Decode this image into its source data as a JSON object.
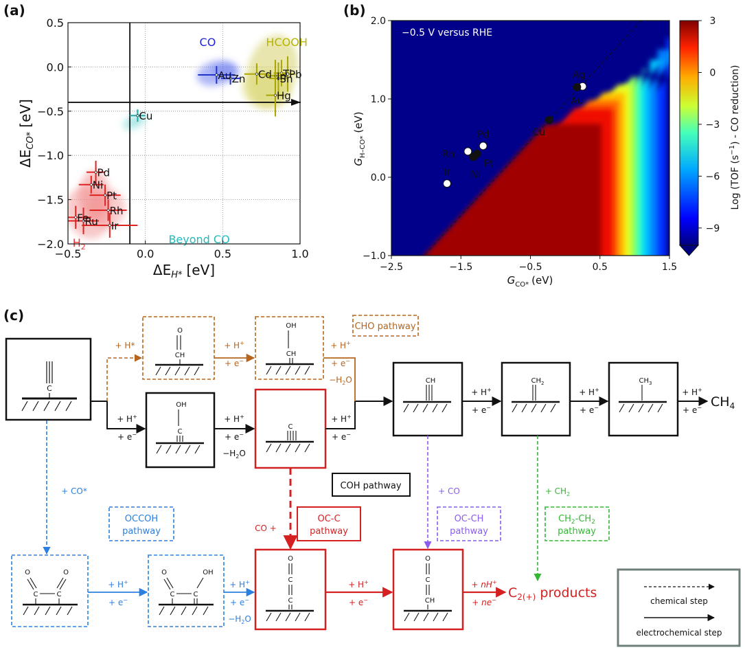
{
  "panels": {
    "a": {
      "label": "(a)"
    },
    "b": {
      "label": "(b)"
    },
    "c": {
      "label": "(c)"
    }
  },
  "chart_data": [
    {
      "type": "scatter",
      "panel": "a",
      "xlabel": "ΔE",
      "xlabel_sub": "H*",
      "xlabel_unit": "[eV]",
      "ylabel": "ΔE",
      "ylabel_sub": "CO*",
      "ylabel_unit": "[eV]",
      "xlim": [
        -0.5,
        1.0
      ],
      "ylim": [
        -2.0,
        0.5
      ],
      "xticks": [
        "−0.5",
        "0.0",
        "0.5",
        "1.0"
      ],
      "yticks": [
        "0.5",
        "0.0",
        "−0.5",
        "−1.0",
        "−1.5",
        "−2.0"
      ],
      "xtick_values": [
        -0.5,
        0.0,
        0.5,
        1.0
      ],
      "ytick_values": [
        0.5,
        0.0,
        -0.5,
        -1.0,
        -1.5,
        -2.0
      ],
      "grid": true,
      "threshold_x": -0.1,
      "threshold_y": -0.4,
      "region_labels": [
        {
          "text": "CO",
          "color": "#2222dd",
          "x": 0.35,
          "y": 0.3
        },
        {
          "text": "HCOOH",
          "color": "#b8b400",
          "x": 0.78,
          "y": 0.3
        },
        {
          "text": "H",
          "sub": "2",
          "color": "#ee3333",
          "x": -0.47,
          "y": -1.97
        },
        {
          "text": "Beyond CO",
          "color": "#22bbbb",
          "x": 0.15,
          "y": -1.93
        }
      ],
      "blobs": [
        {
          "group": "CO",
          "color": "#5566ee",
          "cx": 0.46,
          "cy": -0.07,
          "rx": 0.13,
          "ry": 0.14,
          "rot": -15
        },
        {
          "group": "CO",
          "color": "#6677ee",
          "cx": 0.52,
          "cy": -0.05,
          "rx": 0.09,
          "ry": 0.09,
          "rot": 0
        },
        {
          "group": "HCOOH",
          "color": "#cdc84a",
          "cx": 0.82,
          "cy": -0.05,
          "rx": 0.16,
          "ry": 0.42,
          "rot": 15
        },
        {
          "group": "HCOOH",
          "color": "#d6d260",
          "cx": 0.78,
          "cy": -0.25,
          "rx": 0.16,
          "ry": 0.22,
          "rot": 10
        },
        {
          "group": "Beyond CO",
          "color": "#55cccc",
          "cx": -0.07,
          "cy": -0.62,
          "rx": 0.08,
          "ry": 0.07,
          "rot": -25
        },
        {
          "group": "H2",
          "color": "#f07a7a",
          "cx": -0.33,
          "cy": -1.45,
          "rx": 0.1,
          "ry": 0.28,
          "rot": 0
        },
        {
          "group": "H2",
          "color": "#f08888",
          "cx": -0.37,
          "cy": -1.65,
          "rx": 0.14,
          "ry": 0.3,
          "rot": -20
        },
        {
          "group": "H2",
          "color": "#f29090",
          "cx": -0.25,
          "cy": -1.6,
          "rx": 0.12,
          "ry": 0.22,
          "rot": 20
        }
      ],
      "series": [
        {
          "name": "Au",
          "color": "#2233cc",
          "x": 0.46,
          "y": -0.09,
          "xerr": 0.12,
          "yerr": 0.1
        },
        {
          "name": "Zn",
          "color": "#2233cc",
          "x": 0.55,
          "y": -0.13,
          "xerr": 0.06,
          "yerr": 0.07
        },
        {
          "name": "Cd",
          "color": "#aaa500",
          "x": 0.72,
          "y": -0.08,
          "xerr": 0.08,
          "yerr": 0.12
        },
        {
          "name": "In",
          "color": "#aaa500",
          "x": 0.84,
          "y": -0.1,
          "xerr": 0.07,
          "yerr": 0.18
        },
        {
          "name": "Tl",
          "color": "#aaa500",
          "x": 0.88,
          "y": -0.07,
          "xerr": 0.05,
          "yerr": 0.15
        },
        {
          "name": "Pb",
          "color": "#aaa500",
          "x": 0.92,
          "y": -0.08,
          "xerr": 0.05,
          "yerr": 0.2
        },
        {
          "name": "Sn",
          "color": "#aaa500",
          "x": 0.86,
          "y": -0.13,
          "xerr": 0.06,
          "yerr": 0.18
        },
        {
          "name": "Hg",
          "color": "#aaa500",
          "x": 0.84,
          "y": -0.32,
          "xerr": 0.06,
          "yerr": 0.24
        },
        {
          "name": "Cu",
          "color": "#22aaaa",
          "x": -0.05,
          "y": -0.55,
          "xerr": 0.05,
          "yerr": 0.07
        },
        {
          "name": "Pd",
          "color": "#dd2222",
          "x": -0.32,
          "y": -1.19,
          "xerr": 0.06,
          "yerr": 0.13
        },
        {
          "name": "Ni",
          "color": "#dd2222",
          "x": -0.35,
          "y": -1.33,
          "xerr": 0.08,
          "yerr": 0.1
        },
        {
          "name": "Pt",
          "color": "#dd2222",
          "x": -0.26,
          "y": -1.45,
          "xerr": 0.1,
          "yerr": 0.12
        },
        {
          "name": "Rh",
          "color": "#dd2222",
          "x": -0.24,
          "y": -1.62,
          "xerr": 0.12,
          "yerr": 0.12
        },
        {
          "name": "Fe",
          "color": "#dd2222",
          "x": -0.45,
          "y": -1.7,
          "xerr": 0.1,
          "yerr": 0.13
        },
        {
          "name": "Ru",
          "color": "#dd2222",
          "x": -0.4,
          "y": -1.74,
          "xerr": 0.1,
          "yerr": 0.15
        },
        {
          "name": "Ir",
          "color": "#dd2222",
          "x": -0.23,
          "y": -1.79,
          "xerr": 0.18,
          "yerr": 0.14
        }
      ]
    },
    {
      "type": "heatmap",
      "panel": "b",
      "annotation": "−0.5 V versus RHE",
      "xlabel": "G",
      "xlabel_sub": "CO*",
      "xlabel_unit": "(eV)",
      "ylabel": "G",
      "ylabel_sub": "H–CO*",
      "ylabel_unit": "(eV)",
      "xlim": [
        -2.5,
        1.5
      ],
      "ylim": [
        -1.0,
        2.0
      ],
      "xticks": [
        "−2.5",
        "−1.5",
        "−0.5",
        "0.5",
        "1.5"
      ],
      "yticks": [
        "2.0",
        "1.0",
        "0.0",
        "−1.0"
      ],
      "xtick_values": [
        -2.5,
        -1.5,
        -0.5,
        0.5,
        1.5
      ],
      "ytick_values": [
        2.0,
        1.0,
        0.0,
        -1.0
      ],
      "colorbar_label": "Log (TOF (s",
      "colorbar_label_sup": "−1",
      "colorbar_label_end": ") - CO reduction)",
      "colorbar_ticks": [
        "3",
        "0",
        "−3",
        "−6",
        "−9"
      ],
      "colorbar_tick_values": [
        3,
        0,
        -3,
        -6,
        -9
      ],
      "colorbar_range": [
        -10,
        3
      ],
      "scaling_line": {
        "slope": 0.96,
        "intercept": 0.95,
        "style": "dashed"
      },
      "points": [
        {
          "name": "Ag",
          "x": 0.25,
          "y": 1.16,
          "marker": "white",
          "label_dx": -0.05,
          "label_dy": 0.15
        },
        {
          "name": "Au",
          "x": 0.17,
          "y": 1.15,
          "marker": "black",
          "label_dx": 0.0,
          "label_dy": -0.17
        },
        {
          "name": "Cu",
          "x": -0.23,
          "y": 0.73,
          "marker": "black",
          "label_dx": -0.15,
          "label_dy": -0.15
        },
        {
          "name": "Pd",
          "x": -1.18,
          "y": 0.4,
          "marker": "white",
          "label_dx": 0.0,
          "label_dy": 0.15
        },
        {
          "name": "Rh",
          "x": -1.4,
          "y": 0.33,
          "marker": "white",
          "label_dx": -0.28,
          "label_dy": -0.03
        },
        {
          "name": "Pt",
          "x": -1.27,
          "y": 0.3,
          "marker": "black",
          "label_dx": 0.17,
          "label_dy": -0.12
        },
        {
          "name": "Ni",
          "x": -1.32,
          "y": 0.26,
          "marker": "black",
          "label_dx": 0.03,
          "label_dy": -0.22
        },
        {
          "name": "Ir",
          "x": -1.7,
          "y": -0.08,
          "marker": "white",
          "label_dx": 0.0,
          "label_dy": 0.15
        }
      ]
    }
  ],
  "diagram": {
    "pathways": {
      "cho": "CHO pathway",
      "coh": "COH pathway",
      "occcoh_1": "OCCOH",
      "occcoh_2": "pathway",
      "occ_1": "OC-C",
      "occ_2": "pathway",
      "occh_1": "OC-CH",
      "occh_2": "pathway",
      "chch_1": "CH",
      "chch_sub1": "2",
      "chch_mid": "-CH",
      "chch_sub2": "2",
      "chch_2": "pathway"
    },
    "steps": {
      "h_star": "+ H*",
      "h_plus": "+ H",
      "h_plus_sup": "+",
      "e_minus": "+ e",
      "e_minus_sup": "−",
      "minus_h2o": "−H",
      "minus_h2o_sub": "2",
      "minus_h2o_end": "O",
      "co_star": "+ CO*",
      "co": "+ CO",
      "ch2": "+ CH",
      "ch2_sub": "2",
      "co_plus": "CO +",
      "n_h": "+ nH",
      "n_e": "+ ne"
    },
    "adsorbates": {
      "o": "O",
      "oh": "OH",
      "c": "C",
      "ch": "CH",
      "ch2": "CH",
      "ch2_sub": "2",
      "ch3": "CH",
      "ch3_sub": "3"
    },
    "products": {
      "ch4": "CH",
      "ch4_sub": "4",
      "c2": "C",
      "c2_sub": "2(+)",
      "c2_end": " products"
    },
    "legend": {
      "chemical": "chemical step",
      "electrochemical": "electrochemical step"
    }
  },
  "colors": {
    "black": "#111111",
    "cho": "#b5651d",
    "coh": "#111111",
    "red": "#d42020",
    "blue": "#2b7fe0",
    "purple": "#8a5cf0",
    "green": "#33b833",
    "legend_border": "#6e7f7a"
  }
}
